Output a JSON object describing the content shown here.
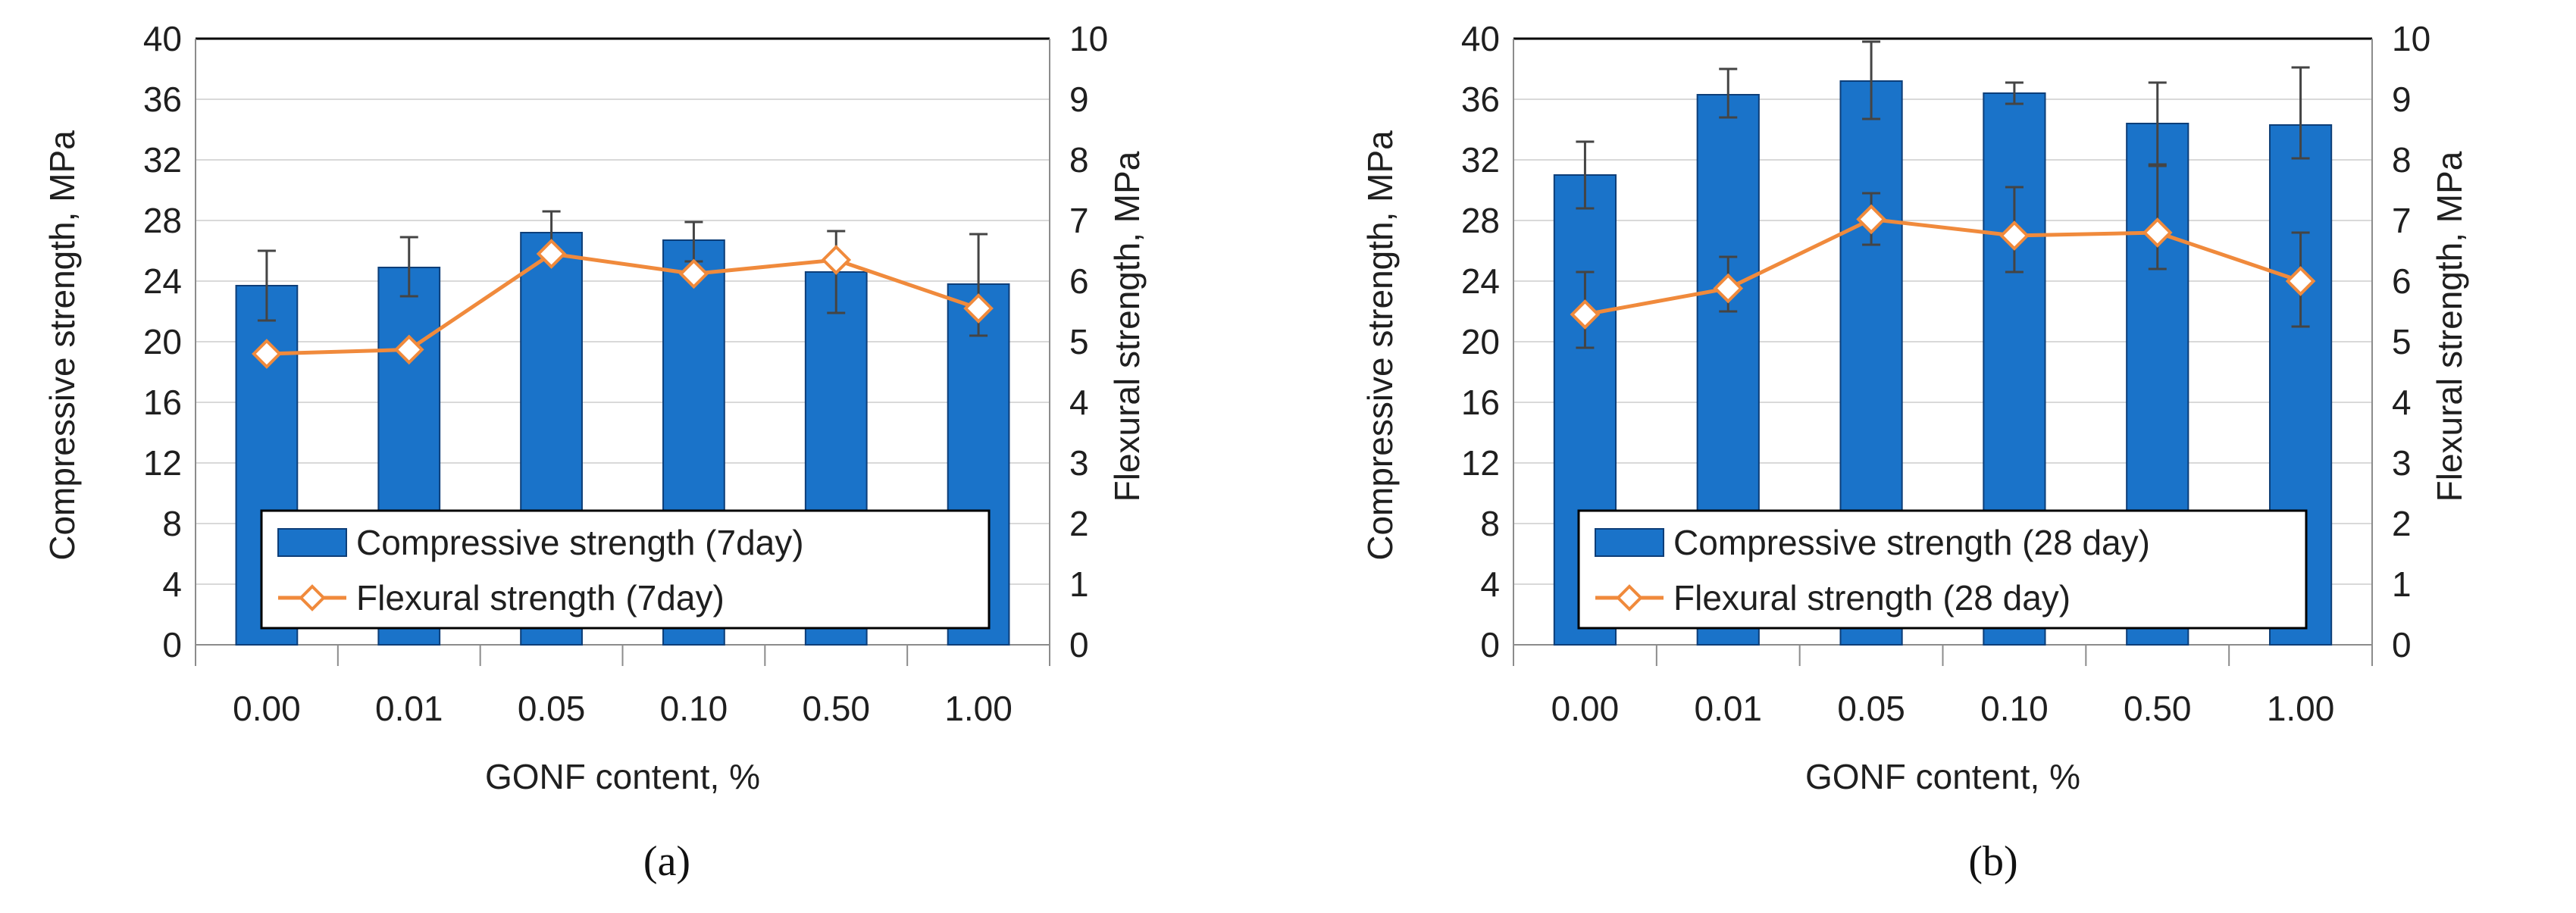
{
  "chart_data": [
    {
      "type": "bar",
      "panel_label": "(a)",
      "categories": [
        "0.00",
        "0.01",
        "0.05",
        "0.10",
        "0.50",
        "1.00"
      ],
      "xlabel": "GONF content, %",
      "ylabel": "Compressive strength, MPa",
      "y2label": "Flexural strength, MPa",
      "ylim": [
        0,
        40
      ],
      "y_ticks": [
        0,
        4,
        8,
        12,
        16,
        20,
        24,
        28,
        32,
        36,
        40
      ],
      "y2lim": [
        0,
        10
      ],
      "y2_ticks": [
        0,
        1,
        2,
        3,
        4,
        5,
        6,
        7,
        8,
        9,
        10
      ],
      "grid": true,
      "legend_position": "bottom-center",
      "series": [
        {
          "name": "Compressive strength (7day)",
          "type": "bar",
          "axis": "left",
          "color": "#1a73c9",
          "values": [
            23.7,
            24.9,
            27.2,
            26.7,
            24.6,
            23.8
          ],
          "error_low": [
            21.4,
            23.0,
            25.6,
            25.3,
            21.9,
            20.4
          ],
          "error_high": [
            26.0,
            26.9,
            28.6,
            27.9,
            27.3,
            27.1
          ]
        },
        {
          "name": "Flexural strength (7day)",
          "type": "line",
          "axis": "right",
          "color": "#f08a3c",
          "marker": "diamond-open",
          "values": [
            4.8,
            4.87,
            6.45,
            6.12,
            6.35,
            5.55
          ]
        }
      ]
    },
    {
      "type": "bar",
      "panel_label": "(b)",
      "categories": [
        "0.00",
        "0.01",
        "0.05",
        "0.10",
        "0.50",
        "1.00"
      ],
      "xlabel": "GONF content, %",
      "ylabel": "Compressive strength, MPa",
      "y2label": "Flexural strength, MPa",
      "ylim": [
        0,
        40
      ],
      "y_ticks": [
        0,
        4,
        8,
        12,
        16,
        20,
        24,
        28,
        32,
        36,
        40
      ],
      "y2lim": [
        0,
        10
      ],
      "y2_ticks": [
        0,
        1,
        2,
        3,
        4,
        5,
        6,
        7,
        8,
        9,
        10
      ],
      "grid": true,
      "legend_position": "bottom-center",
      "series": [
        {
          "name": "Compressive strength (28 day)",
          "type": "bar",
          "axis": "left",
          "color": "#1a73c9",
          "values": [
            31.0,
            36.3,
            37.2,
            36.4,
            34.4,
            34.3
          ],
          "error_low": [
            28.8,
            34.8,
            34.7,
            35.7,
            31.7,
            32.1
          ],
          "error_high": [
            33.2,
            38.0,
            39.8,
            37.1,
            37.1,
            38.1
          ]
        },
        {
          "name": "Flexural strength (28 day)",
          "type": "line",
          "axis": "right",
          "color": "#f08a3c",
          "marker": "diamond-open",
          "values": [
            5.45,
            5.88,
            7.02,
            6.75,
            6.8,
            6.0
          ],
          "error_low": [
            4.9,
            5.5,
            6.6,
            6.15,
            6.2,
            5.25
          ],
          "error_high": [
            6.15,
            6.4,
            7.45,
            7.55,
            7.9,
            6.8
          ]
        }
      ]
    }
  ]
}
